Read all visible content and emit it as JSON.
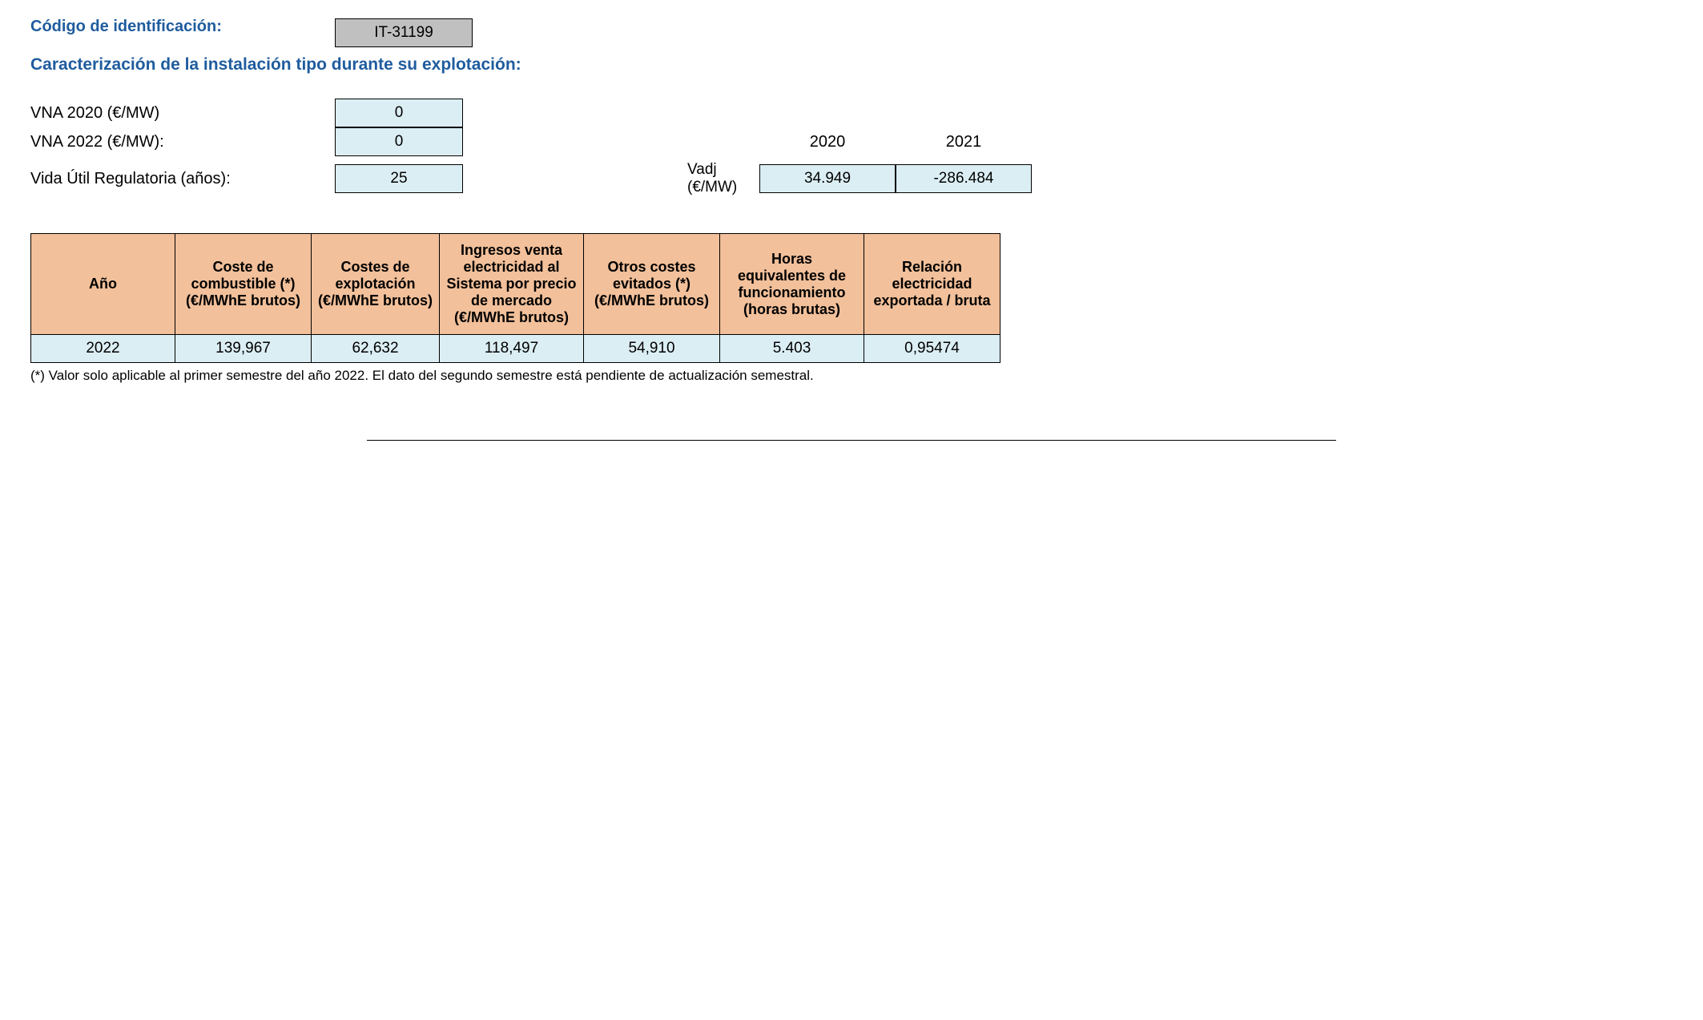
{
  "header": {
    "id_label": "Código de identificación:",
    "id_value": "IT-31199",
    "section_title": "Caracterización de la instalación tipo durante su explotación:"
  },
  "params": {
    "vna2020_label": "VNA 2020 (€/MW)",
    "vna2020_value": "0",
    "vna2022_label": "VNA 2022 (€/MW):",
    "vna2022_value": "0",
    "vida_label": "Vida Útil Regulatoria (años):",
    "vida_value": "25",
    "vadj_label": "Vadj (€/MW)",
    "year_headers": [
      "2020",
      "2021"
    ],
    "vadj_values": [
      "34.949",
      "-286.484"
    ]
  },
  "table": {
    "columns": [
      "Año",
      "Coste de combustible (*) (€/MWhE brutos)",
      "Costes de explotación (€/MWhE brutos)",
      "Ingresos venta electricidad al Sistema por precio de mercado (€/MWhE brutos)",
      "Otros costes evitados (*) (€/MWhE brutos)",
      "Horas equivalentes de funcionamiento (horas brutas)",
      "Relación electricidad exportada / bruta"
    ],
    "rows": [
      [
        "2022",
        "139,967",
        "62,632",
        "118,497",
        "54,910",
        "5.403",
        "0,95474"
      ]
    ],
    "col_widths": [
      "180px",
      "170px",
      "160px",
      "180px",
      "170px",
      "180px",
      "170px"
    ]
  },
  "footnote": "(*) Valor solo aplicable al primer semestre del año 2022. El dato del segundo semestre está pendiente de actualización semestral.",
  "colors": {
    "heading": "#1f5c9e",
    "header_bg": "#f2c09a",
    "cell_bg": "#dbeef3",
    "box_gray": "#c0c0c0"
  }
}
